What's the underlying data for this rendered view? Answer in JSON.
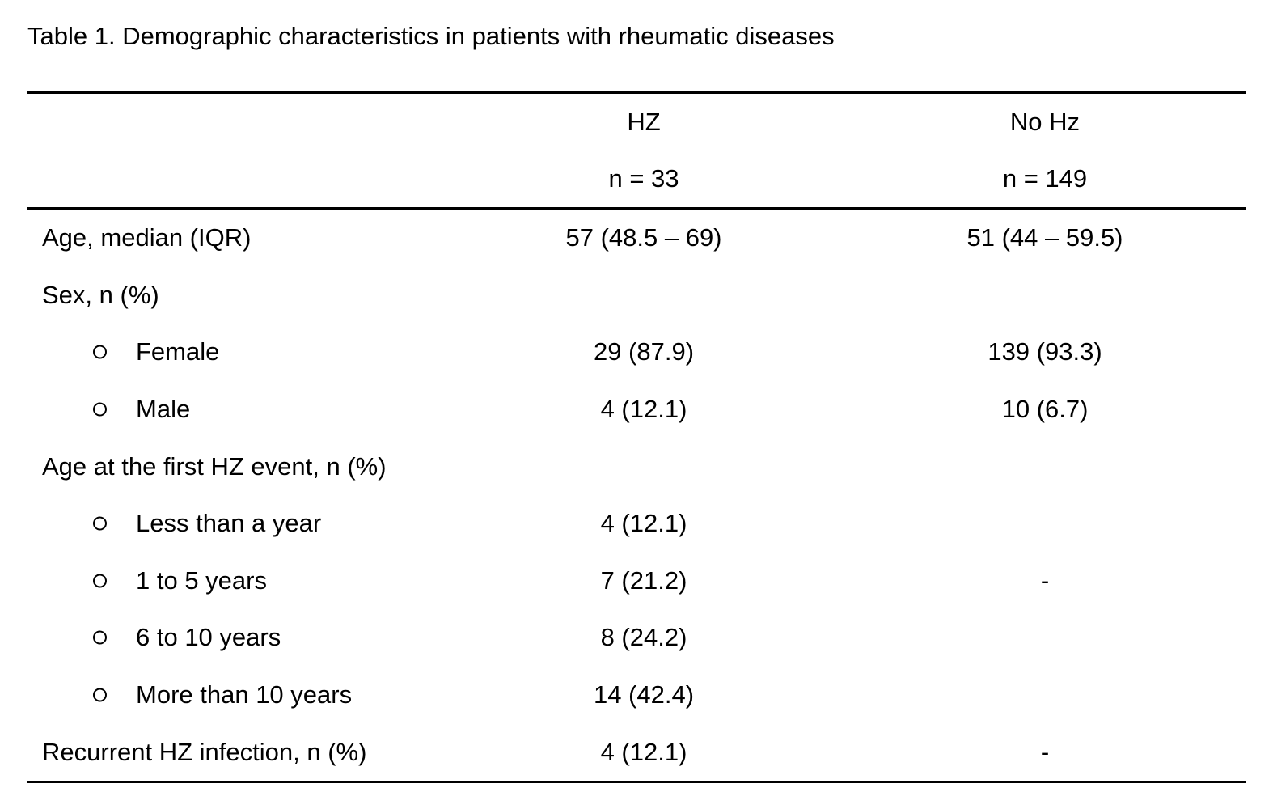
{
  "title": "Table 1. Demographic characteristics in patients with rheumatic diseases",
  "table": {
    "header": {
      "hz": {
        "line1": "HZ",
        "line2": "n = 33"
      },
      "nohz": {
        "line1": "No Hz",
        "line2": "n = 149"
      }
    },
    "rows": [
      {
        "label": "Age, median (IQR)",
        "hz": "57 (48.5 – 69)",
        "nohz": "51 (44 – 59.5)"
      },
      {
        "label": "Sex, n (%)",
        "hz": "",
        "nohz": ""
      },
      {
        "label": "Female",
        "hz": "29 (87.9)",
        "nohz": "139 (93.3)"
      },
      {
        "label": "Male",
        "hz": "4 (12.1)",
        "nohz": "10 (6.7)"
      },
      {
        "label": "Age at the first HZ event, n (%)",
        "hz": "",
        "nohz": ""
      },
      {
        "label": "Less than a year",
        "hz": "4 (12.1)",
        "nohz": ""
      },
      {
        "label": "1 to 5 years",
        "hz": "7 (21.2)",
        "nohz": "-"
      },
      {
        "label": "6 to 10 years",
        "hz": "8 (24.2)",
        "nohz": ""
      },
      {
        "label": "More than 10 years",
        "hz": "14 (42.4)",
        "nohz": ""
      },
      {
        "label": "Recurrent HZ infection, n (%)",
        "hz": "4 (12.1)",
        "nohz": "-"
      }
    ]
  }
}
